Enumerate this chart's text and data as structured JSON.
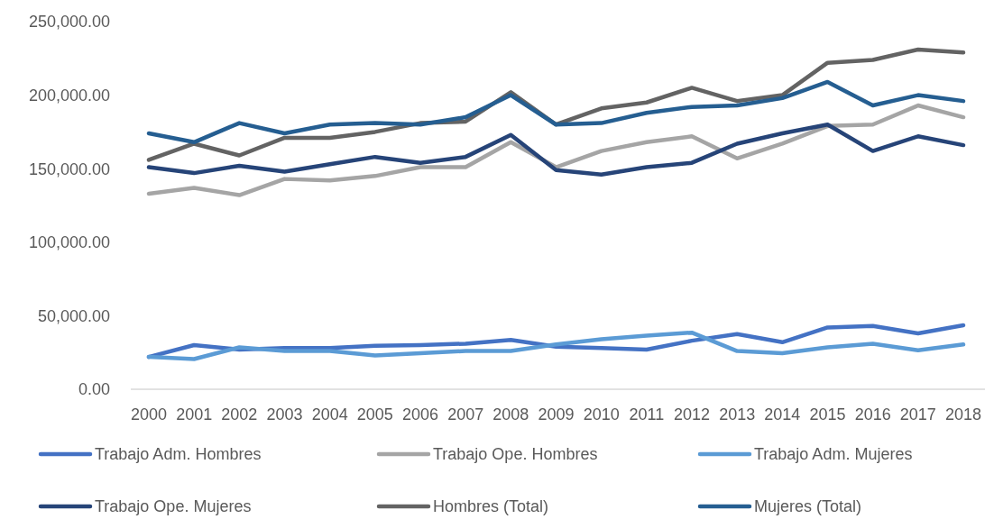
{
  "chart_data": {
    "type": "line",
    "categories": [
      "2000",
      "2001",
      "2002",
      "2003",
      "2004",
      "2005",
      "2006",
      "2007",
      "2008",
      "2009",
      "2010",
      "2011",
      "2012",
      "2013",
      "2014",
      "2015",
      "2016",
      "2017",
      "2018"
    ],
    "ylim": [
      0,
      250000
    ],
    "yticks": [
      {
        "value": 0,
        "label": "0.00"
      },
      {
        "value": 50000,
        "label": "50,000.00"
      },
      {
        "value": 100000,
        "label": "100,000.00"
      },
      {
        "value": 150000,
        "label": "150,000.00"
      },
      {
        "value": 200000,
        "label": "200,000.00"
      },
      {
        "value": 250000,
        "label": "250,000.00"
      }
    ],
    "grid": false,
    "legend": "bottom",
    "line_style": "solid",
    "marker": "none",
    "series": [
      {
        "name": "Trabajo Adm. Hombres",
        "color": "#4472c4",
        "values": [
          22000,
          30000,
          27000,
          28000,
          28000,
          29500,
          30000,
          31000,
          33500,
          29000,
          28000,
          27000,
          33000,
          37500,
          32000,
          42000,
          43000,
          38000,
          43500
        ]
      },
      {
        "name": "Trabajo Ope. Hombres",
        "color": "#a5a5a5",
        "values": [
          133000,
          137000,
          132000,
          143000,
          142000,
          145000,
          151000,
          151000,
          168000,
          151000,
          162000,
          168000,
          172000,
          157000,
          167000,
          179000,
          180000,
          193000,
          185000
        ]
      },
      {
        "name": "Trabajo Adm. Mujeres",
        "color": "#5b9bd5",
        "values": [
          22000,
          20500,
          28500,
          26000,
          26000,
          23000,
          24500,
          26000,
          26000,
          30500,
          34000,
          36500,
          38500,
          26000,
          24500,
          28500,
          31000,
          26500,
          30500
        ]
      },
      {
        "name": "Trabajo Ope. Mujeres",
        "color": "#264478",
        "values": [
          151000,
          147000,
          152000,
          148000,
          153000,
          158000,
          154000,
          158000,
          173000,
          149000,
          146000,
          151000,
          154000,
          167000,
          174000,
          180000,
          162000,
          172000,
          166000
        ]
      },
      {
        "name": "Hombres (Total)",
        "color": "#636363",
        "values": [
          156000,
          167000,
          159000,
          171000,
          171000,
          175000,
          181000,
          182000,
          202000,
          180000,
          191000,
          195000,
          205000,
          196000,
          200000,
          222000,
          224000,
          231000,
          229000
        ]
      },
      {
        "name": "Mujeres (Total)",
        "color": "#255e91",
        "values": [
          174000,
          168000,
          181000,
          174000,
          180000,
          181000,
          180000,
          185000,
          200000,
          180000,
          181000,
          188000,
          192000,
          193000,
          198000,
          209000,
          193000,
          200000,
          196000
        ]
      }
    ]
  }
}
